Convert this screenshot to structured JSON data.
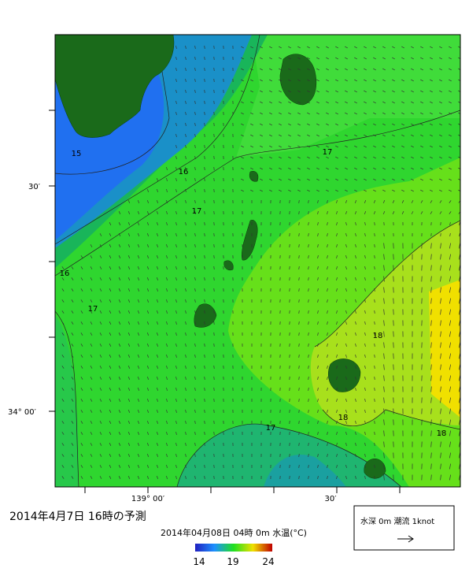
{
  "header": {
    "title": "2014年4月7日 16時の予測",
    "subtitle": "2014年04月08日 04時 0m 水温(°C)"
  },
  "axes": {
    "lat_labels": [
      "30′",
      "34° 00′"
    ],
    "lon_labels": [
      "139° 00′",
      "30′"
    ]
  },
  "contour_labels": [
    "15",
    "16",
    "17",
    "17",
    "16",
    "17",
    "18",
    "18",
    "18",
    "17"
  ],
  "colorbar": {
    "ticks": [
      "14",
      "19",
      "24"
    ]
  },
  "legend": {
    "label": "水深 0m 潮流 1knot"
  }
}
